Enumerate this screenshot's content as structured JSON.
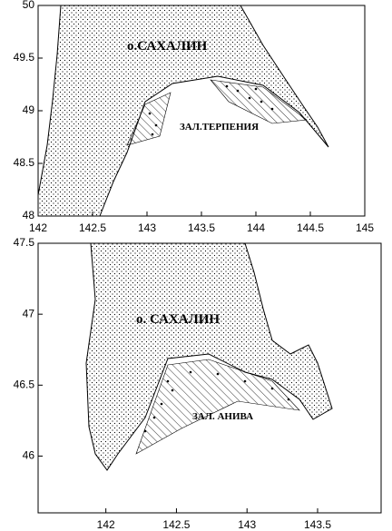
{
  "maps": [
    {
      "island_label": "о.САХАЛИН",
      "bay_label": "ЗАЛ.ТЕРПЕНИЯ",
      "xlim": [
        142,
        145
      ],
      "ylim": [
        48,
        50
      ],
      "xticks": [
        142,
        142.5,
        143,
        143.5,
        144,
        144.5,
        145
      ],
      "yticks": [
        48,
        48.5,
        49,
        49.5,
        50
      ]
    },
    {
      "island_label": "о. САХАЛИН",
      "bay_label": "ЗАЛ. АНИВА",
      "xlim": [
        141.52,
        143.95
      ],
      "ylim": [
        45.6,
        47.5
      ],
      "xticks": [
        142,
        142.5,
        143,
        143.5
      ],
      "yticks": [
        46,
        46.5,
        47,
        47.5
      ]
    }
  ]
}
